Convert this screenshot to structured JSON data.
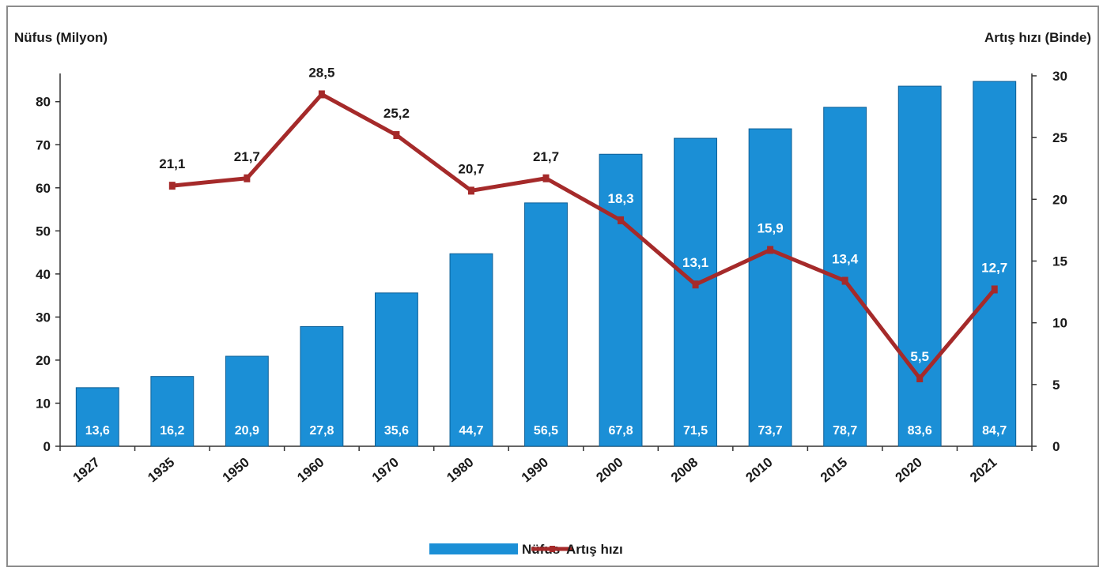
{
  "chart_data": {
    "type": "bar",
    "categories": [
      "1927",
      "1935",
      "1950",
      "1960",
      "1970",
      "1980",
      "1990",
      "2000",
      "2008",
      "2010",
      "2015",
      "2020",
      "2021"
    ],
    "series": [
      {
        "name": "Nüfus",
        "type": "bar",
        "axis": "left",
        "color": "#1b8fd6",
        "values": [
          13.6,
          16.2,
          20.9,
          27.8,
          35.6,
          44.7,
          56.5,
          67.8,
          71.5,
          73.7,
          78.7,
          83.6,
          84.7
        ],
        "labels": [
          "13,6",
          "16,2",
          "20,9",
          "27,8",
          "35,6",
          "44,7",
          "56,5",
          "67,8",
          "71,5",
          "73,7",
          "78,7",
          "83,6",
          "84,7"
        ]
      },
      {
        "name": "Artış hızı",
        "type": "line",
        "axis": "right",
        "color": "#a52a2a",
        "values": [
          null,
          21.1,
          21.7,
          28.5,
          25.2,
          20.7,
          21.7,
          18.3,
          13.1,
          15.9,
          13.4,
          5.5,
          12.7
        ],
        "labels": [
          "",
          "21,1",
          "21,7",
          "28,5",
          "25,2",
          "20,7",
          "21,7",
          "18,3",
          "13,1",
          "15,9",
          "13,4",
          "5,5",
          "12,7"
        ]
      }
    ],
    "ylabel": "Nüfus (Milyon)",
    "y2label": "Artış hızı (Binde)",
    "ylim": [
      0,
      86
    ],
    "y2lim": [
      0,
      30
    ],
    "yticks": [
      0,
      10,
      20,
      30,
      40,
      50,
      60,
      70,
      80
    ],
    "y2ticks": [
      0,
      5,
      10,
      15,
      20,
      25,
      30
    ],
    "grid": false,
    "legend": "bottom"
  }
}
